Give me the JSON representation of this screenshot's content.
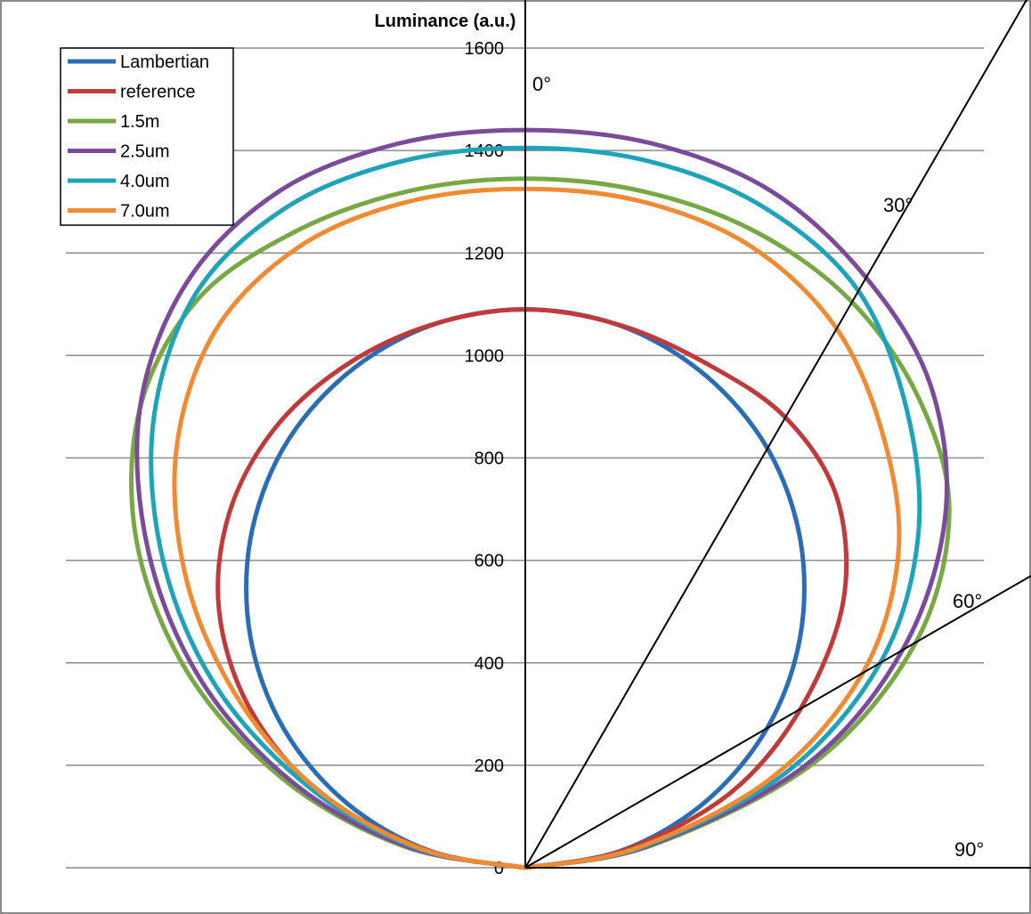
{
  "chart_data": {
    "type": "polar-line",
    "title": "Luminance (a.u.)",
    "ylim": [
      0,
      1600
    ],
    "yticks": [
      0,
      200,
      400,
      600,
      800,
      1000,
      1200,
      1400,
      1600
    ],
    "grid": true,
    "legend_position": "top-left",
    "angle_labels": [
      "0°",
      "30°",
      "60°",
      "90°"
    ],
    "angle_marks": [
      {
        "label": "0°",
        "angle": 0
      },
      {
        "label": "30°",
        "angle": 30
      },
      {
        "label": "60°",
        "angle": 60
      },
      {
        "label": "90°",
        "angle": 90
      }
    ],
    "angles": [
      -90,
      -80,
      -70,
      -60,
      -50,
      -40,
      -30,
      -20,
      -10,
      0,
      10,
      20,
      30,
      40,
      50,
      60,
      70,
      80,
      90
    ],
    "series": [
      {
        "name": "Lambertian",
        "color": "#2a6db5",
        "values": [
          0,
          189,
          372,
          545,
          700,
          835,
          945,
          1024,
          1074,
          1090,
          1074,
          1024,
          945,
          835,
          700,
          545,
          372,
          189,
          0
        ]
      },
      {
        "name": "reference",
        "color": "#c0393b",
        "values": [
          0,
          195,
          425,
          620,
          780,
          900,
          985,
          1040,
          1075,
          1090,
          1075,
          1045,
          1015,
          945,
          810,
          620,
          425,
          195,
          0
        ]
      },
      {
        "name": "1.5m",
        "color": "#77a843",
        "values": [
          0,
          240,
          500,
          760,
          990,
          1170,
          1280,
          1320,
          1340,
          1345,
          1340,
          1320,
          1275,
          1195,
          1080,
          880,
          600,
          250,
          0
        ]
      },
      {
        "name": "2.5um",
        "color": "#7b4a9b",
        "values": [
          0,
          230,
          480,
          730,
          960,
          1170,
          1320,
          1405,
          1435,
          1440,
          1435,
          1405,
          1330,
          1230,
          1070,
          850,
          580,
          240,
          0
        ]
      },
      {
        "name": "4.0um",
        "color": "#1ea3b8",
        "values": [
          0,
          210,
          440,
          690,
          920,
          1130,
          1290,
          1370,
          1400,
          1405,
          1400,
          1370,
          1300,
          1160,
          1000,
          800,
          540,
          230,
          0
        ]
      },
      {
        "name": "7.0um",
        "color": "#f08a33",
        "values": [
          0,
          200,
          420,
          640,
          860,
          1060,
          1210,
          1290,
          1320,
          1325,
          1320,
          1290,
          1215,
          1090,
          950,
          760,
          510,
          220,
          0
        ]
      }
    ]
  }
}
